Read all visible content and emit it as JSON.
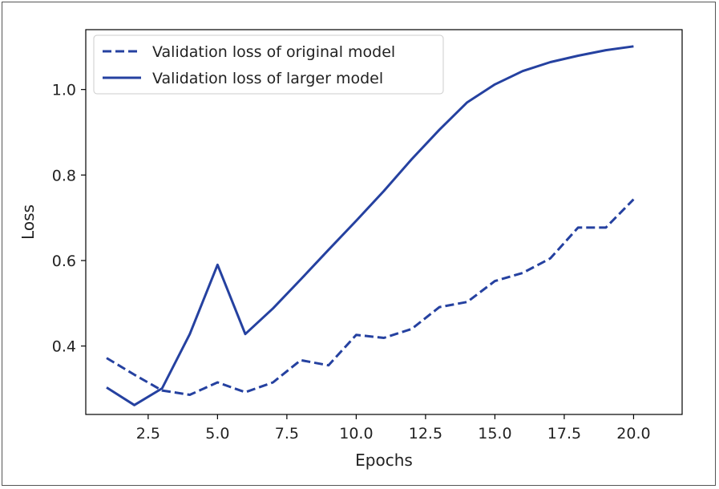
{
  "chart_data": {
    "type": "line",
    "xlabel": "Epochs",
    "ylabel": "Loss",
    "xlim": [
      0.25,
      21.75
    ],
    "ylim": [
      0.24,
      1.14
    ],
    "xticks": [
      2.5,
      5.0,
      7.5,
      10.0,
      12.5,
      15.0,
      17.5,
      20.0
    ],
    "xtick_labels": [
      "2.5",
      "5.0",
      "7.5",
      "10.0",
      "12.5",
      "15.0",
      "17.5",
      "20.0"
    ],
    "yticks": [
      0.4,
      0.6,
      0.8,
      1.0
    ],
    "ytick_labels": [
      "0.4",
      "0.6",
      "0.8",
      "1.0"
    ],
    "grid": false,
    "legend_position": "top-left",
    "line_color": "#2541a0",
    "x": [
      1,
      2,
      3,
      4,
      5,
      6,
      7,
      8,
      9,
      10,
      11,
      12,
      13,
      14,
      15,
      16,
      17,
      18,
      19,
      20
    ],
    "series": [
      {
        "name": "Validation loss of original model",
        "style": "dashed",
        "values": [
          0.372,
          0.333,
          0.296,
          0.286,
          0.315,
          0.292,
          0.315,
          0.367,
          0.355,
          0.426,
          0.419,
          0.44,
          0.491,
          0.503,
          0.552,
          0.571,
          0.605,
          0.677,
          0.677,
          0.743
        ]
      },
      {
        "name": "Validation loss of larger model",
        "style": "solid",
        "values": [
          0.303,
          0.262,
          0.301,
          0.428,
          0.59,
          0.428,
          0.488,
          0.556,
          0.625,
          0.693,
          0.763,
          0.837,
          0.906,
          0.97,
          1.012,
          1.043,
          1.064,
          1.079,
          1.092,
          1.101
        ]
      }
    ]
  }
}
